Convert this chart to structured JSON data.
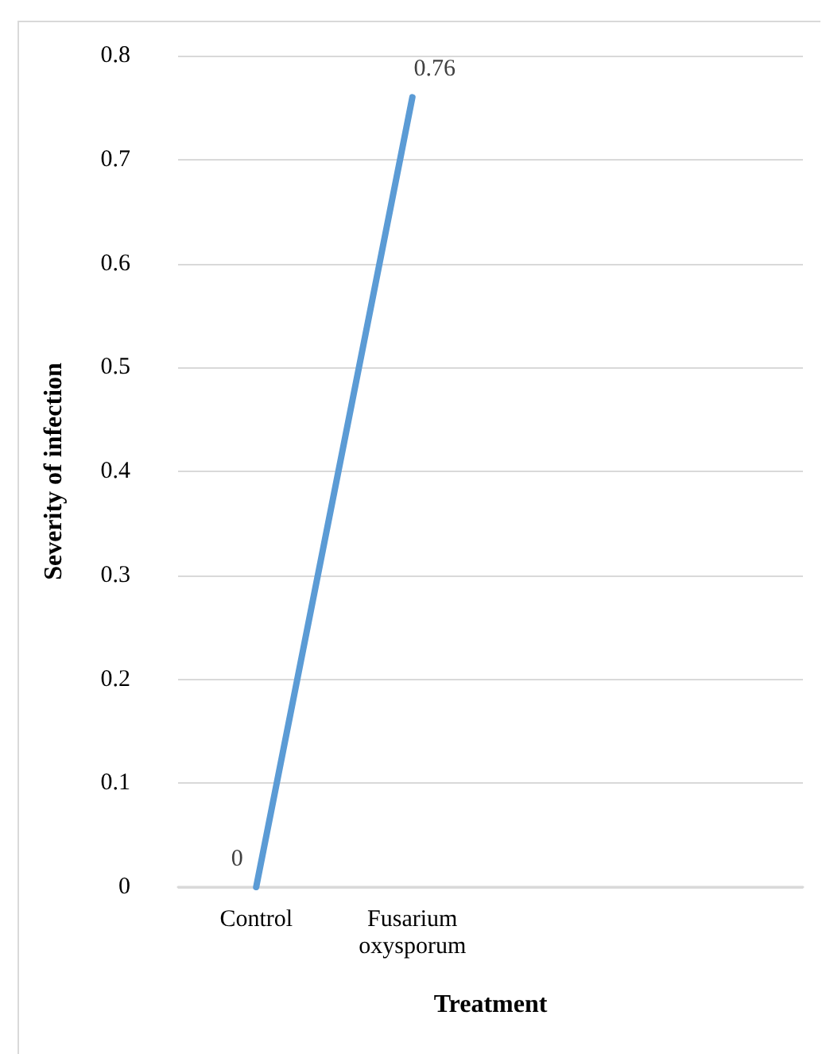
{
  "chart_data": {
    "type": "line",
    "xlabel": "Treatment",
    "ylabel": "Severity of infection",
    "categories": [
      "Control",
      "Fusarium\noxysporum",
      null,
      null
    ],
    "series": [
      {
        "color": "#5b9bd5",
        "values": [
          0,
          0.76,
          null,
          null
        ]
      }
    ],
    "ylim": [
      0,
      0.8
    ],
    "yticks": [
      0,
      0.1,
      0.2,
      0.3,
      0.4,
      0.5,
      0.6,
      0.7,
      0.8
    ],
    "grid": "y",
    "marker": "none",
    "line_style": "solid",
    "data_labels": true
  }
}
